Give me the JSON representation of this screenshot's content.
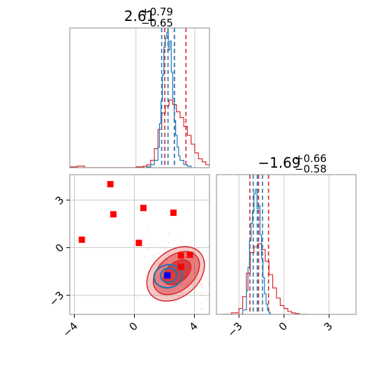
{
  "colors": {
    "red": "#d62728",
    "blue": "#1f77b4",
    "red_marker": "#ff0000",
    "blue_marker": "#0000ff",
    "grid": "#c8c8c8",
    "spine": "#888888"
  },
  "chart_data": [
    {
      "type": "line",
      "panel": "top-left marginal histogram (parameter 1)",
      "title": {
        "base": "2.61",
        "sup": "+0.79",
        "sub": "−0.65"
      },
      "xlim": [
        -4.5,
        5.0
      ],
      "grid": true,
      "series": [
        {
          "color": "#d62728",
          "style": "step",
          "x": [
            -4.5,
            -4.0,
            -3.5,
            -3.0,
            -2.5,
            -2.0,
            -1.5,
            -1.0,
            -0.5,
            0.0,
            0.5,
            0.75,
            1.0,
            1.25,
            1.5,
            1.75,
            2.0,
            2.25,
            2.5,
            2.75,
            3.0,
            3.25,
            3.5,
            3.75,
            4.0,
            4.25,
            4.5,
            4.75,
            5.0
          ],
          "y": [
            0.005,
            0.01,
            0.0,
            0.0,
            0.0,
            0.0,
            0.0,
            0.0,
            0.0,
            0.005,
            0.01,
            0.02,
            0.05,
            0.13,
            0.26,
            0.37,
            0.42,
            0.46,
            0.43,
            0.38,
            0.34,
            0.28,
            0.22,
            0.16,
            0.1,
            0.06,
            0.04,
            0.02,
            0.01
          ],
          "quantiles": [
            1.96,
            2.61,
            3.4
          ]
        },
        {
          "color": "#1f77b4",
          "style": "step",
          "x": [
            0.5,
            0.75,
            1.0,
            1.25,
            1.5,
            1.6,
            1.7,
            1.8,
            1.9,
            2.0,
            2.1,
            2.2,
            2.3,
            2.4,
            2.5,
            2.6,
            2.7,
            2.8,
            2.9,
            3.0,
            3.25,
            3.5,
            3.75
          ],
          "y": [
            0.0,
            0.005,
            0.02,
            0.05,
            0.14,
            0.3,
            0.45,
            0.63,
            0.82,
            0.88,
            0.92,
            0.8,
            0.86,
            0.65,
            0.47,
            0.32,
            0.22,
            0.14,
            0.08,
            0.05,
            0.02,
            0.01,
            0.0
          ],
          "quantiles": [
            1.75,
            2.18,
            2.62
          ]
        }
      ]
    },
    {
      "type": "line",
      "panel": "bottom-right marginal histogram (parameter 2)",
      "title": {
        "base": "−1.69",
        "sup": "+0.66",
        "sub": "−0.58"
      },
      "xlim": [
        -4.5,
        4.8
      ],
      "xticks": [
        "−3",
        "0",
        "3"
      ],
      "grid": true,
      "series": [
        {
          "color": "#d62728",
          "style": "step",
          "x": [
            -4.2,
            -3.5,
            -3.0,
            -2.75,
            -2.5,
            -2.25,
            -2.0,
            -1.75,
            -1.5,
            -1.25,
            -1.0,
            -0.75,
            -0.5,
            -0.25,
            0.0,
            0.25,
            0.5,
            0.75,
            1.0,
            1.5
          ],
          "y": [
            0.0,
            0.01,
            0.04,
            0.12,
            0.28,
            0.42,
            0.46,
            0.48,
            0.44,
            0.36,
            0.27,
            0.18,
            0.11,
            0.06,
            0.04,
            0.02,
            0.01,
            0.005,
            0.0,
            0.0
          ],
          "quantiles": [
            -2.27,
            -1.69,
            -1.03
          ]
        },
        {
          "color": "#1f77b4",
          "style": "step",
          "x": [
            -3.0,
            -2.75,
            -2.5,
            -2.4,
            -2.3,
            -2.2,
            -2.1,
            -2.0,
            -1.9,
            -1.8,
            -1.7,
            -1.6,
            -1.5,
            -1.4,
            -1.3,
            -1.2,
            -1.1,
            -1.0,
            -0.9
          ],
          "y": [
            0.0,
            0.03,
            0.16,
            0.32,
            0.5,
            0.62,
            0.7,
            0.82,
            0.85,
            0.72,
            0.74,
            0.54,
            0.38,
            0.25,
            0.14,
            0.07,
            0.03,
            0.01,
            0.0
          ],
          "quantiles": [
            -2.05,
            -1.78,
            -1.43
          ]
        }
      ]
    },
    {
      "type": "scatter",
      "panel": "bottom-left 2D joint (parameter 1 vs parameter 2)",
      "xlim": [
        -4.3,
        5.0
      ],
      "ylim": [
        -4.2,
        4.6
      ],
      "xticks": [
        "−4",
        "0",
        "4"
      ],
      "yticks": [
        "−3",
        "0",
        "3"
      ],
      "grid": true,
      "red_contours": [
        {
          "cx": 2.85,
          "cy": -1.55,
          "rx": 1.05,
          "ry": 0.62,
          "rot": -38
        },
        {
          "cx": 2.8,
          "cy": -1.6,
          "rx": 1.75,
          "ry": 1.1,
          "rot": -40
        },
        {
          "cx": 2.75,
          "cy": -1.65,
          "rx": 2.15,
          "ry": 1.45,
          "rot": -40
        }
      ],
      "blue_contours": [
        {
          "cx": 2.3,
          "cy": -1.75,
          "rx": 0.55,
          "ry": 0.45,
          "rot": -10
        },
        {
          "cx": 2.25,
          "cy": -1.8,
          "rx": 0.95,
          "ry": 0.72,
          "rot": -10
        }
      ],
      "red_markers": {
        "x": [
          -3.5,
          -1.6,
          -1.4,
          0.6,
          0.3,
          2.6,
          3.1,
          3.7,
          3.1
        ],
        "y": [
          0.5,
          4.0,
          2.1,
          2.5,
          0.3,
          2.2,
          -0.5,
          -0.45,
          -1.2
        ]
      },
      "blue_markers": {
        "x": [
          2.2
        ],
        "y": [
          -1.75
        ]
      }
    }
  ]
}
